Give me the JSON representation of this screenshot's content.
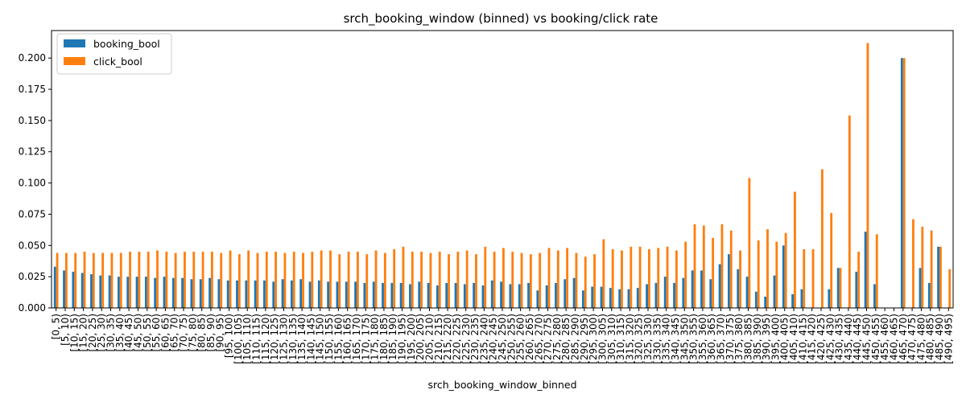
{
  "chart_data": {
    "type": "bar",
    "title": "srch_booking_window (binned) vs booking/click rate",
    "xlabel": "srch_booking_window_binned",
    "ylabel": "",
    "ylim": [
      0,
      0.222
    ],
    "yticks": [
      "0.000",
      "0.025",
      "0.050",
      "0.075",
      "0.100",
      "0.125",
      "0.150",
      "0.175",
      "0.200"
    ],
    "legend": "upper-left",
    "grid": false,
    "categories": [
      "[0, 5)",
      "[5, 10)",
      "[10, 15)",
      "[15, 20)",
      "[20, 25)",
      "[25, 30)",
      "[30, 35)",
      "[35, 40)",
      "[40, 45)",
      "[45, 50)",
      "[50, 55)",
      "[55, 60)",
      "[60, 65)",
      "[65, 70)",
      "[70, 75)",
      "[75, 80)",
      "[80, 85)",
      "[85, 90)",
      "[90, 95)",
      "[95, 100)",
      "[100, 105)",
      "[105, 110)",
      "[110, 115)",
      "[115, 120)",
      "[120, 125)",
      "[125, 130)",
      "[130, 135)",
      "[135, 140)",
      "[140, 145)",
      "[145, 150)",
      "[150, 155)",
      "[155, 160)",
      "[160, 165)",
      "[165, 170)",
      "[170, 175)",
      "[175, 180)",
      "[180, 185)",
      "[185, 190)",
      "[190, 195)",
      "[195, 200)",
      "[200, 205)",
      "[205, 210)",
      "[210, 215)",
      "[215, 220)",
      "[220, 225)",
      "[225, 230)",
      "[230, 235)",
      "[235, 240)",
      "[240, 245)",
      "[245, 250)",
      "[250, 255)",
      "[255, 260)",
      "[260, 265)",
      "[265, 270)",
      "[270, 275)",
      "[275, 280)",
      "[280, 285)",
      "[285, 290)",
      "[290, 295)",
      "[295, 300)",
      "[300, 305)",
      "[305, 310)",
      "[310, 315)",
      "[315, 320)",
      "[320, 325)",
      "[325, 330)",
      "[330, 335)",
      "[335, 340)",
      "[340, 345)",
      "[345, 350)",
      "[350, 355)",
      "[355, 360)",
      "[360, 365)",
      "[365, 370)",
      "[370, 375)",
      "[375, 380)",
      "[380, 385)",
      "[385, 390)",
      "[390, 395)",
      "[395, 400)",
      "[400, 405)",
      "[405, 410)",
      "[410, 415)",
      "[415, 420)",
      "[420, 425)",
      "[425, 430)",
      "[430, 435)",
      "[435, 440)",
      "[440, 445)",
      "[445, 450)",
      "[450, 455)",
      "[455, 460)",
      "[460, 465)",
      "[465, 470)",
      "[470, 475)",
      "[475, 480)",
      "[480, 485)",
      "[485, 490)",
      "[490, 495)"
    ],
    "series": [
      {
        "name": "booking_bool",
        "color": "#1f77b4",
        "values": [
          0.033,
          0.03,
          0.029,
          0.028,
          0.027,
          0.026,
          0.026,
          0.025,
          0.025,
          0.025,
          0.025,
          0.024,
          0.025,
          0.024,
          0.024,
          0.023,
          0.023,
          0.024,
          0.023,
          0.022,
          0.022,
          0.022,
          0.022,
          0.022,
          0.021,
          0.023,
          0.022,
          0.023,
          0.021,
          0.022,
          0.021,
          0.021,
          0.021,
          0.021,
          0.02,
          0.021,
          0.02,
          0.02,
          0.02,
          0.019,
          0.021,
          0.02,
          0.018,
          0.02,
          0.02,
          0.019,
          0.02,
          0.018,
          0.022,
          0.021,
          0.019,
          0.019,
          0.02,
          0.014,
          0.018,
          0.02,
          0.023,
          0.024,
          0.014,
          0.017,
          0.017,
          0.016,
          0.015,
          0.015,
          0.016,
          0.019,
          0.02,
          0.025,
          0.02,
          0.024,
          0.03,
          0.03,
          0.023,
          0.035,
          0.043,
          0.031,
          0.025,
          0.013,
          0.009,
          0.026,
          0.05,
          0.011,
          0.015,
          0.0,
          0.0,
          0.015,
          0.032,
          0.0,
          0.029,
          0.061,
          0.019,
          0.0,
          0.0,
          0.2,
          0.0,
          0.032,
          0.02,
          0.049,
          0.0
        ]
      },
      {
        "name": "click_bool",
        "color": "#ff7f0e",
        "values": [
          0.044,
          0.044,
          0.044,
          0.045,
          0.044,
          0.044,
          0.044,
          0.044,
          0.045,
          0.045,
          0.045,
          0.046,
          0.045,
          0.044,
          0.045,
          0.045,
          0.045,
          0.045,
          0.044,
          0.046,
          0.043,
          0.046,
          0.044,
          0.045,
          0.045,
          0.044,
          0.045,
          0.044,
          0.045,
          0.046,
          0.046,
          0.043,
          0.045,
          0.045,
          0.043,
          0.046,
          0.044,
          0.047,
          0.049,
          0.045,
          0.045,
          0.044,
          0.045,
          0.043,
          0.045,
          0.046,
          0.043,
          0.049,
          0.045,
          0.048,
          0.045,
          0.044,
          0.043,
          0.044,
          0.048,
          0.046,
          0.048,
          0.044,
          0.041,
          0.043,
          0.055,
          0.047,
          0.046,
          0.049,
          0.049,
          0.047,
          0.048,
          0.049,
          0.046,
          0.053,
          0.067,
          0.066,
          0.056,
          0.067,
          0.062,
          0.046,
          0.104,
          0.054,
          0.063,
          0.053,
          0.06,
          0.093,
          0.047,
          0.047,
          0.111,
          0.076,
          0.032,
          0.154,
          0.045,
          0.212,
          0.059,
          0.0,
          0.0,
          0.2,
          0.071,
          0.065,
          0.062,
          0.049,
          0.031
        ]
      }
    ]
  }
}
